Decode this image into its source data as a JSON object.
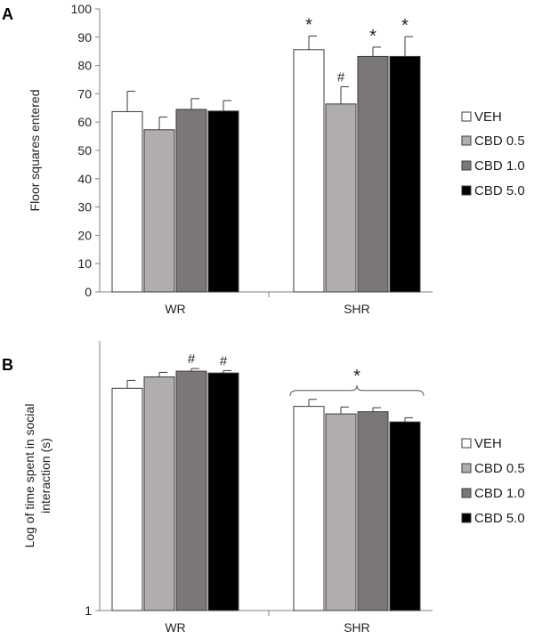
{
  "figure": {
    "panel_letters": [
      "A",
      "B"
    ]
  },
  "colors": {
    "VEH": "#ffffff",
    "CBD 0.5": "#b2adad",
    "CBD 1.0": "#7b7777",
    "CBD 5.0": "#000000",
    "axis": "#7f7f7f",
    "edge": "#3a3a3a"
  },
  "chart_data": [
    {
      "panel": "A",
      "type": "bar",
      "title": "",
      "ylabel": "Floor squares entered",
      "xlabel": "",
      "categories": [
        "WR",
        "SHR"
      ],
      "ylim": [
        0,
        100
      ],
      "yticks": [
        0,
        10,
        20,
        30,
        40,
        50,
        60,
        70,
        80,
        90,
        100
      ],
      "series": [
        {
          "name": "VEH",
          "values": [
            63.7,
            85.6
          ],
          "errors": [
            7.2,
            4.8
          ]
        },
        {
          "name": "CBD 0.5",
          "values": [
            57.3,
            66.4
          ],
          "errors": [
            4.5,
            6.1
          ]
        },
        {
          "name": "CBD 1.0",
          "values": [
            64.5,
            83.2
          ],
          "errors": [
            3.8,
            3.3
          ]
        },
        {
          "name": "CBD 5.0",
          "values": [
            63.9,
            83.2
          ],
          "errors": [
            3.7,
            7.0
          ]
        }
      ],
      "legend": [
        "VEH",
        "CBD 0.5",
        "CBD 1.0",
        "CBD 5.0"
      ],
      "legend_position": "right",
      "annotations": [
        {
          "category": "SHR",
          "series": "VEH",
          "text": "*"
        },
        {
          "category": "SHR",
          "series": "CBD 0.5",
          "text": "#"
        },
        {
          "category": "SHR",
          "series": "CBD 1.0",
          "text": "*"
        },
        {
          "category": "SHR",
          "series": "CBD 5.0",
          "text": "*"
        }
      ]
    },
    {
      "panel": "B",
      "type": "bar",
      "title": "",
      "ylabel": "Log of time spent in social interaction (s)",
      "ylabel_lines": [
        "Log of time spent in social",
        "interaction (s)"
      ],
      "xlabel": "",
      "categories": [
        "WR",
        "SHR"
      ],
      "yscale": "log",
      "ylim": [
        1,
        300
      ],
      "yticks": [
        1
      ],
      "series": [
        {
          "name": "VEH",
          "values": [
            110,
            75
          ],
          "errors": [
            20,
            12
          ]
        },
        {
          "name": "CBD 0.5",
          "values": [
            140,
            64
          ],
          "errors": [
            14,
            10
          ]
        },
        {
          "name": "CBD 1.0",
          "values": [
            158,
            67
          ],
          "errors": [
            9,
            6
          ]
        },
        {
          "name": "CBD 5.0",
          "values": [
            152,
            54
          ],
          "errors": [
            8,
            5
          ]
        }
      ],
      "legend": [
        "VEH",
        "CBD 0.5",
        "CBD 1.0",
        "CBD 5.0"
      ],
      "legend_position": "right",
      "annotations": [
        {
          "category": "WR",
          "series": "CBD 1.0",
          "text": "#"
        },
        {
          "category": "WR",
          "series": "CBD 5.0",
          "text": "#"
        },
        {
          "category": "SHR",
          "series": "all",
          "text": "*",
          "type": "brace"
        }
      ]
    }
  ]
}
